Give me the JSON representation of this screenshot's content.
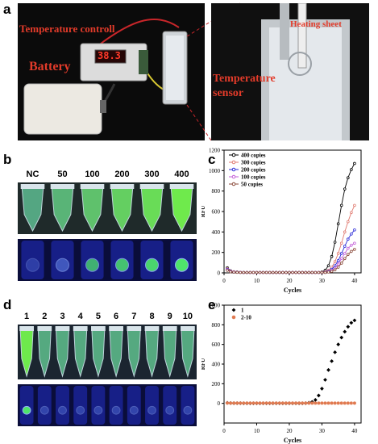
{
  "panels": {
    "a": {
      "letter": "a",
      "labels": {
        "temperature_controller": "Temperature controll",
        "battery": "Battery",
        "display_value": "38.3",
        "heating_sheet": "Heating sheet",
        "temperature_sensor_line1": "Temperature",
        "temperature_sensor_line2": "sensor"
      }
    },
    "b": {
      "letter": "b",
      "tube_labels": [
        "NC",
        "50",
        "100",
        "200",
        "300",
        "400"
      ]
    },
    "c": {
      "letter": "c"
    },
    "d": {
      "letter": "d",
      "tube_labels": [
        "1",
        "2",
        "3",
        "4",
        "5",
        "6",
        "7",
        "8",
        "9",
        "10"
      ]
    },
    "e": {
      "letter": "e"
    }
  },
  "colors": {
    "photo_bg": "#0b0b0b",
    "label_red": "#e23b2a",
    "fluorescent_green": "#3fe25a",
    "uv_blue": "#2a36d8"
  },
  "chart_data": [
    {
      "type": "line",
      "panel": "c",
      "xlabel": "Cycles",
      "ylabel": "RFU",
      "xlim": [
        0,
        42
      ],
      "ylim": [
        0,
        1200
      ],
      "xticks": [
        0,
        10,
        20,
        30,
        40
      ],
      "yticks": [
        0,
        200,
        400,
        600,
        800,
        1000,
        1200
      ],
      "x": [
        1,
        2,
        3,
        4,
        5,
        6,
        7,
        8,
        9,
        10,
        11,
        12,
        13,
        14,
        15,
        16,
        17,
        18,
        19,
        20,
        21,
        22,
        23,
        24,
        25,
        26,
        27,
        28,
        29,
        30,
        31,
        32,
        33,
        34,
        35,
        36,
        37,
        38,
        39,
        40
      ],
      "legend_position": "top-left",
      "series": [
        {
          "name": "400 copies",
          "color": "#000000",
          "marker": "circle",
          "values": [
            50,
            20,
            10,
            8,
            6,
            5,
            5,
            5,
            5,
            5,
            5,
            5,
            5,
            5,
            5,
            5,
            5,
            5,
            5,
            5,
            5,
            5,
            5,
            5,
            5,
            5,
            5,
            5,
            5,
            8,
            25,
            70,
            160,
            300,
            480,
            660,
            820,
            930,
            1010,
            1070
          ]
        },
        {
          "name": "300 copies",
          "color": "#e07a70",
          "marker": "circle",
          "values": [
            40,
            18,
            10,
            7,
            5,
            4,
            4,
            4,
            4,
            4,
            4,
            4,
            4,
            4,
            4,
            4,
            4,
            4,
            4,
            4,
            4,
            4,
            4,
            4,
            4,
            4,
            4,
            4,
            4,
            5,
            10,
            25,
            55,
            110,
            190,
            290,
            400,
            500,
            590,
            660
          ]
        },
        {
          "name": "200 copies",
          "color": "#2a2ad8",
          "marker": "circle",
          "values": [
            35,
            15,
            8,
            6,
            5,
            4,
            4,
            4,
            4,
            4,
            4,
            4,
            4,
            4,
            4,
            4,
            4,
            4,
            4,
            4,
            4,
            4,
            4,
            4,
            4,
            4,
            4,
            4,
            4,
            4,
            7,
            15,
            35,
            70,
            120,
            190,
            260,
            330,
            380,
            420
          ]
        },
        {
          "name": "100 copies",
          "color": "#c35ed8",
          "marker": "circle",
          "values": [
            30,
            12,
            8,
            6,
            5,
            4,
            4,
            4,
            4,
            4,
            4,
            4,
            4,
            4,
            4,
            4,
            4,
            4,
            4,
            4,
            4,
            4,
            4,
            4,
            4,
            4,
            4,
            4,
            4,
            4,
            5,
            10,
            22,
            45,
            85,
            140,
            190,
            240,
            270,
            290
          ]
        },
        {
          "name": "50 copies",
          "color": "#8a4a3a",
          "marker": "circle",
          "values": [
            25,
            10,
            7,
            5,
            4,
            4,
            4,
            4,
            4,
            4,
            4,
            4,
            4,
            4,
            4,
            4,
            4,
            4,
            4,
            4,
            4,
            4,
            4,
            4,
            4,
            4,
            4,
            4,
            4,
            4,
            4,
            8,
            15,
            30,
            55,
            95,
            140,
            180,
            210,
            230
          ]
        }
      ]
    },
    {
      "type": "scatter",
      "panel": "e",
      "xlabel": "Cycles",
      "ylabel": "RFU",
      "xlim": [
        0,
        42
      ],
      "ylim": [
        -200,
        1000
      ],
      "xticks": [
        0,
        10,
        20,
        30,
        40
      ],
      "yticks": [
        0,
        200,
        400,
        600,
        800,
        1000
      ],
      "x": [
        1,
        2,
        3,
        4,
        5,
        6,
        7,
        8,
        9,
        10,
        11,
        12,
        13,
        14,
        15,
        16,
        17,
        18,
        19,
        20,
        21,
        22,
        23,
        24,
        25,
        26,
        27,
        28,
        29,
        30,
        31,
        32,
        33,
        34,
        35,
        36,
        37,
        38,
        39,
        40
      ],
      "legend_position": "top-left",
      "series": [
        {
          "name": "1",
          "color": "#000000",
          "marker": "diamond",
          "values": [
            5,
            3,
            2,
            2,
            2,
            1,
            1,
            1,
            1,
            1,
            1,
            1,
            1,
            1,
            1,
            1,
            1,
            1,
            1,
            1,
            1,
            1,
            1,
            1,
            2,
            6,
            15,
            35,
            80,
            150,
            240,
            340,
            430,
            520,
            600,
            670,
            730,
            780,
            820,
            845
          ]
        },
        {
          "name": "2-10",
          "color": "#e07a50",
          "marker": "circle",
          "values": [
            3,
            2,
            2,
            2,
            2,
            2,
            2,
            2,
            2,
            2,
            2,
            2,
            2,
            2,
            2,
            2,
            2,
            2,
            2,
            2,
            2,
            2,
            2,
            2,
            2,
            2,
            2,
            2,
            2,
            2,
            2,
            2,
            2,
            2,
            2,
            2,
            2,
            2,
            2,
            2
          ]
        }
      ]
    }
  ]
}
